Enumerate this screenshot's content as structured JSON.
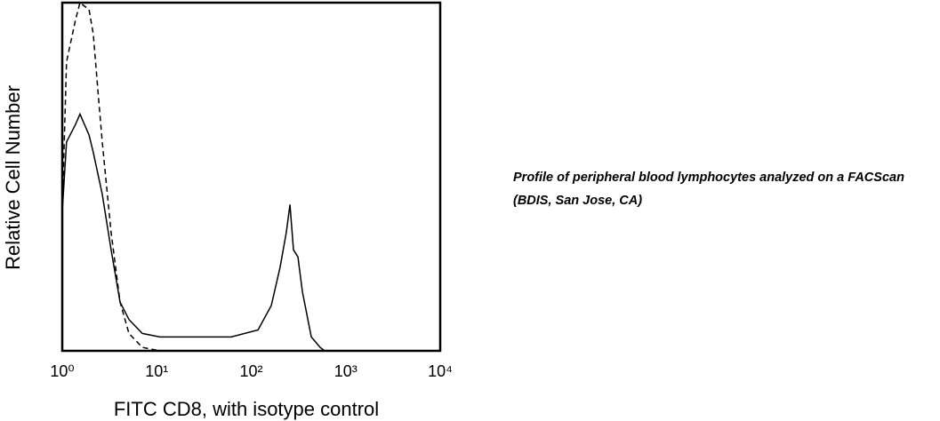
{
  "chart_data": {
    "type": "line",
    "xlabel": "FITC CD8, with isotype control",
    "ylabel": "Relative Cell Number",
    "caption": "Profile of peripheral blood lymphocytes analyzed on a FACScan (BDIS, San Jose, CA)",
    "xscale": "log",
    "xlim": [
      1,
      10000
    ],
    "ylim": [
      0,
      100
    ],
    "grid": false,
    "xticks": [
      {
        "value": 1,
        "label": "10⁰"
      },
      {
        "value": 10,
        "label": "10¹"
      },
      {
        "value": 100,
        "label": "10²"
      },
      {
        "value": 1000,
        "label": "10³"
      },
      {
        "value": 10000,
        "label": "10⁴"
      }
    ],
    "series": [
      {
        "color": "#000000",
        "dashed": false,
        "x": [
          1,
          1.11,
          1.38,
          1.54,
          1.92,
          2.13,
          2.65,
          3.29,
          4.09,
          5.08,
          7.03,
          10.8,
          25.8,
          61.4,
          118,
          163,
          202,
          235,
          257,
          280,
          312,
          348,
          432,
          536,
          598
        ],
        "values": [
          40,
          60,
          65,
          68,
          62,
          57,
          45,
          29,
          14,
          9,
          5,
          4,
          4,
          4,
          6,
          13,
          24,
          34,
          42,
          29,
          27,
          17,
          4,
          1,
          0
        ]
      },
      {
        "color": "#000000",
        "dashed": true,
        "x": [
          1,
          1.11,
          1.38,
          1.54,
          1.92,
          2.13,
          2.38,
          2.65,
          3.29,
          4.09,
          5.08,
          7.03,
          10.8
        ],
        "values": [
          40,
          83,
          95,
          100,
          98,
          91,
          75,
          60,
          34,
          14,
          5,
          1,
          0
        ]
      }
    ]
  }
}
